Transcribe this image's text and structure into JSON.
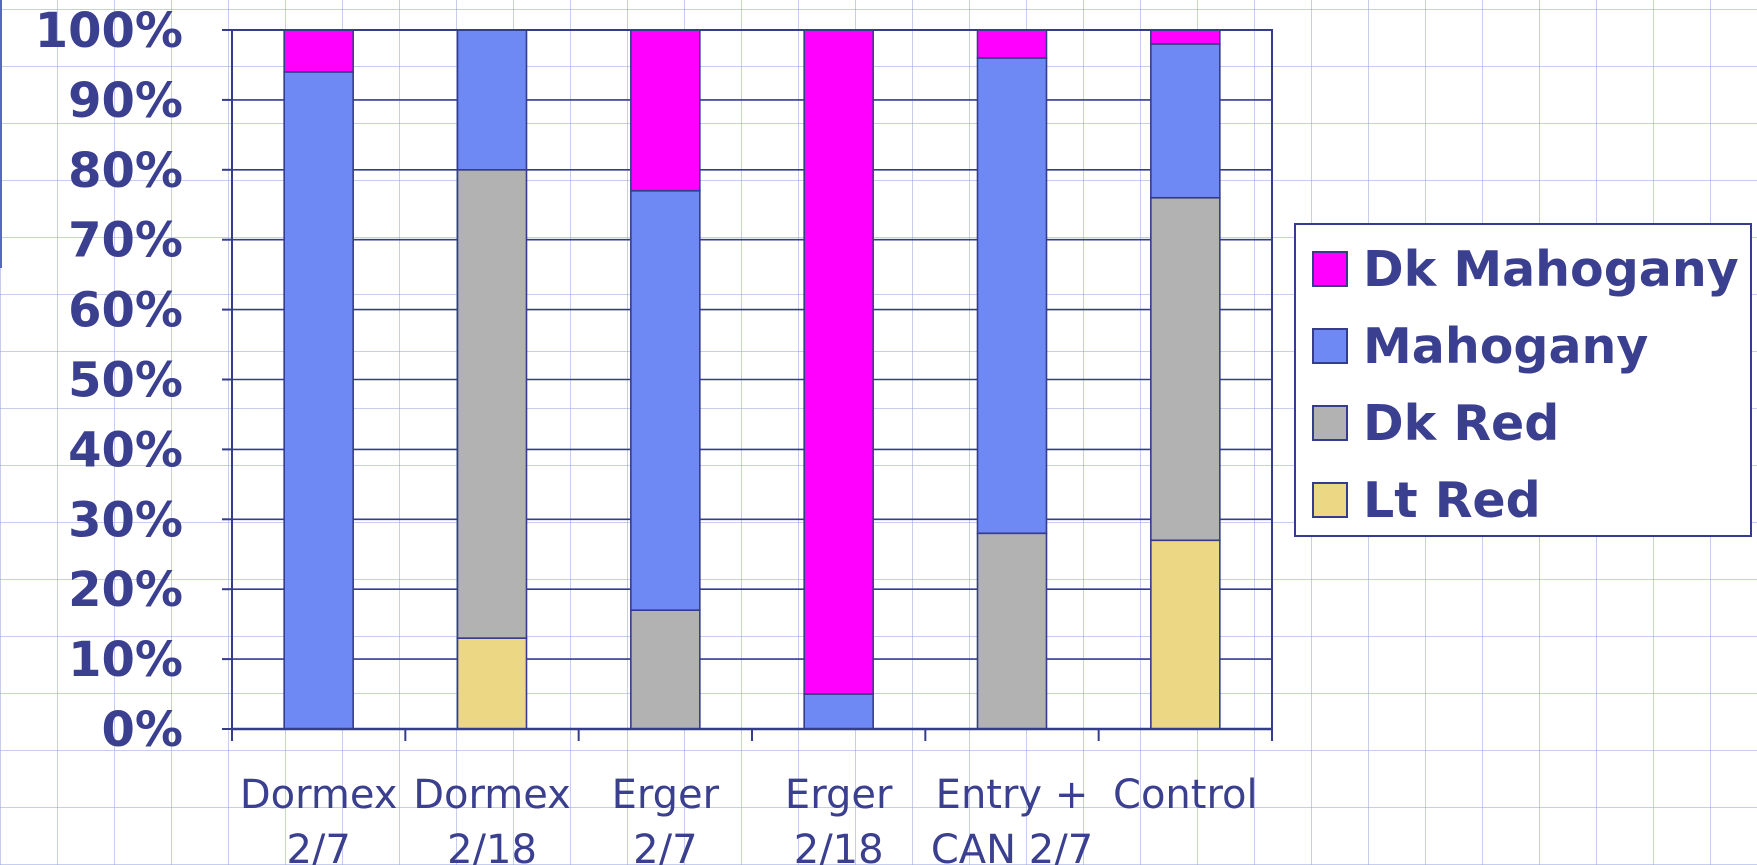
{
  "chart_data": {
    "type": "bar",
    "stacked": true,
    "percent_stacked": true,
    "title": "",
    "xlabel": "",
    "ylabel": "",
    "ylim": [
      0,
      100
    ],
    "yticks": [
      "0%",
      "10%",
      "20%",
      "30%",
      "40%",
      "50%",
      "60%",
      "70%",
      "80%",
      "90%",
      "100%"
    ],
    "categories": [
      [
        "Dormex",
        "2/7"
      ],
      [
        "Dormex",
        "2/18"
      ],
      [
        "Erger",
        "2/7"
      ],
      [
        "Erger",
        "2/18"
      ],
      [
        "Entry +",
        "CAN 2/7"
      ],
      [
        "Control",
        ""
      ]
    ],
    "series": [
      {
        "name": "Lt Red",
        "color": "#ecd784",
        "values": [
          0,
          13,
          0,
          0,
          0,
          27
        ]
      },
      {
        "name": "Dk Red",
        "color": "#b2b2b2",
        "values": [
          0,
          67,
          17,
          0,
          28,
          49
        ]
      },
      {
        "name": "Mahogany",
        "color": "#6e88f4",
        "values": [
          94,
          20,
          60,
          5,
          68,
          22
        ]
      },
      {
        "name": "Dk Mahogany",
        "color": "#ff00ff",
        "values": [
          6,
          0,
          23,
          95,
          4,
          2
        ]
      }
    ],
    "legend": {
      "placement": "right",
      "order": [
        "Dk Mahogany",
        "Mahogany",
        "Dk Red",
        "Lt Red"
      ]
    },
    "grid": true,
    "text_color": "#3b3f8f",
    "axis_color": "#353c8c"
  }
}
